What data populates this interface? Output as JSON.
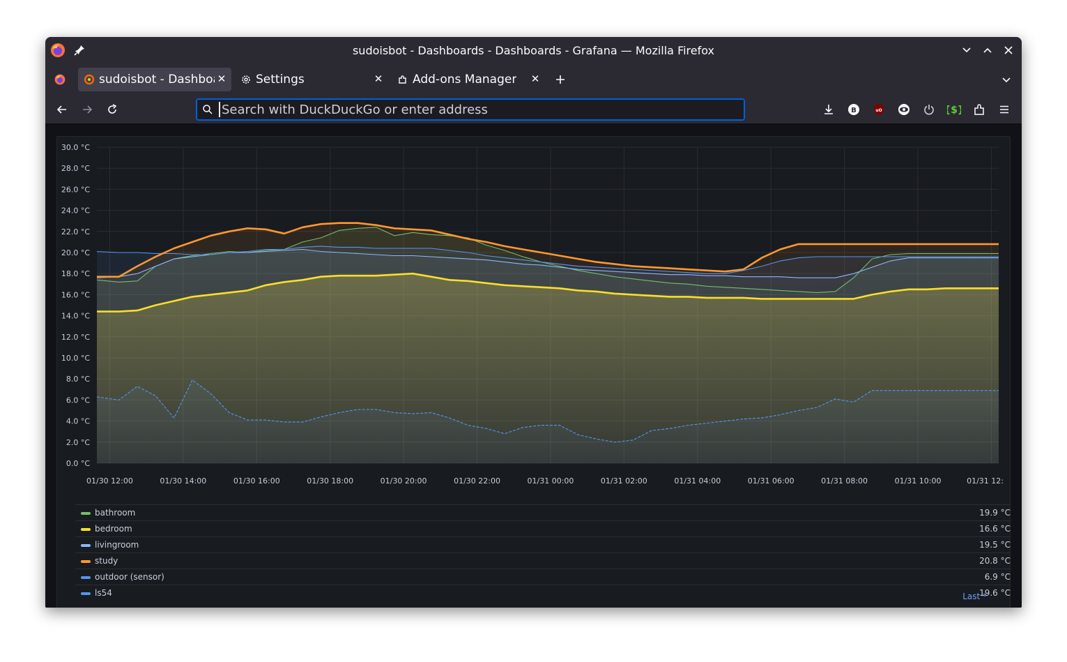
{
  "window": {
    "title": "sudoisbot - Dashboards - Dashboards - Grafana — Mozilla Firefox"
  },
  "tabs": [
    {
      "label": "sudoisbot - Dashboards - Dashboards - Grafana",
      "active": true,
      "icon": "grafana-icon"
    },
    {
      "label": "Settings",
      "active": false,
      "icon": "gear-icon"
    },
    {
      "label": "Add-ons Manager",
      "active": false,
      "icon": "puzzle-icon"
    }
  ],
  "urlbar": {
    "placeholder": "Search with DuckDuckGo or enter address"
  },
  "extensions": [
    "download-icon",
    "bitwarden-icon",
    "ublock-icon",
    "privacy-badger-icon",
    "power-icon",
    "script-icon",
    "extensions-icon",
    "menu-icon"
  ],
  "colors": {
    "bathroom": "#73bf69",
    "bedroom": "#fade2a",
    "livingroom": "#8ab8ff",
    "study": "#ff9830",
    "outdoor": "#5794f2",
    "ls54": "#5794f2"
  },
  "chart_data": {
    "type": "line",
    "yunit": "°C",
    "ylim": [
      0,
      30
    ],
    "ytick_labels": [
      "30.0 °C",
      "28.0 °C",
      "26.0 °C",
      "24.0 °C",
      "22.0 °C",
      "20.0 °C",
      "18.0 °C",
      "16.0 °C",
      "14.0 °C",
      "12.0 °C",
      "10.0 °C",
      "8.0 °C",
      "6.0 °C",
      "4.0 °C",
      "2.0 °C",
      "0.0 °C"
    ],
    "yticks": [
      30,
      28,
      26,
      24,
      22,
      20,
      18,
      16,
      14,
      12,
      10,
      8,
      6,
      4,
      2,
      0
    ],
    "xtick_labels": [
      "01/30 12:00",
      "01/30 14:00",
      "01/30 16:00",
      "01/30 18:00",
      "01/30 20:00",
      "01/30 22:00",
      "01/31 00:00",
      "01/31 02:00",
      "01/31 04:00",
      "01/31 06:00",
      "01/31 08:00",
      "01/31 10:00",
      "01/31 12:"
    ],
    "xticks_hours": [
      0,
      2,
      4,
      6,
      8,
      10,
      12,
      14,
      16,
      18,
      20,
      22,
      24
    ],
    "xlim_hours": [
      -0.35,
      24.2
    ],
    "x": [
      -0.35,
      0.25,
      0.75,
      1.25,
      1.75,
      2.25,
      2.75,
      3.25,
      3.75,
      4.25,
      4.75,
      5.25,
      5.75,
      6.25,
      6.75,
      7.25,
      7.75,
      8.25,
      8.75,
      9.25,
      9.75,
      10.25,
      10.75,
      11.25,
      11.75,
      12.25,
      12.75,
      13.25,
      13.75,
      14.25,
      14.75,
      15.25,
      15.75,
      16.25,
      16.75,
      17.25,
      17.75,
      18.25,
      18.75,
      19.25,
      19.75,
      20.25,
      20.75,
      21.25,
      21.75,
      22.25,
      22.75,
      23.25,
      23.75,
      24.2
    ],
    "series": [
      {
        "name": "bathroom",
        "values": [
          17.4,
          17.2,
          17.3,
          18.7,
          19.4,
          19.7,
          19.9,
          20.1,
          20.0,
          20.2,
          20.3,
          21.0,
          21.4,
          22.1,
          22.3,
          22.4,
          21.6,
          21.9,
          21.7,
          21.6,
          21.4,
          20.7,
          20.2,
          19.6,
          19.1,
          18.7,
          18.3,
          18.0,
          17.7,
          17.5,
          17.3,
          17.1,
          17.0,
          16.8,
          16.7,
          16.6,
          16.5,
          16.4,
          16.3,
          16.2,
          16.3,
          17.6,
          19.4,
          19.8,
          19.9,
          19.9,
          19.9,
          19.9,
          19.9,
          19.9
        ]
      },
      {
        "name": "bedroom",
        "values": [
          14.4,
          14.4,
          14.5,
          15.0,
          15.4,
          15.8,
          16.0,
          16.2,
          16.4,
          16.9,
          17.2,
          17.4,
          17.7,
          17.8,
          17.8,
          17.8,
          17.9,
          18.0,
          17.7,
          17.4,
          17.3,
          17.1,
          16.9,
          16.8,
          16.7,
          16.6,
          16.4,
          16.3,
          16.1,
          16.0,
          15.9,
          15.8,
          15.8,
          15.7,
          15.7,
          15.7,
          15.6,
          15.6,
          15.6,
          15.6,
          15.6,
          15.6,
          16.0,
          16.3,
          16.5,
          16.5,
          16.6,
          16.6,
          16.6,
          16.6
        ]
      },
      {
        "name": "livingroom",
        "values": [
          17.6,
          17.7,
          18.0,
          18.7,
          19.4,
          19.6,
          19.8,
          20.0,
          20.0,
          20.1,
          20.2,
          20.3,
          20.1,
          20.0,
          19.9,
          19.8,
          19.7,
          19.7,
          19.6,
          19.5,
          19.4,
          19.3,
          19.1,
          18.9,
          18.8,
          18.6,
          18.4,
          18.3,
          18.2,
          18.1,
          18.0,
          17.9,
          17.9,
          17.8,
          17.8,
          17.7,
          17.7,
          17.7,
          17.6,
          17.6,
          17.6,
          18.0,
          18.6,
          19.2,
          19.5,
          19.5,
          19.5,
          19.5,
          19.5,
          19.5
        ]
      },
      {
        "name": "study",
        "values": [
          17.7,
          17.7,
          18.7,
          19.6,
          20.4,
          21.0,
          21.6,
          22.0,
          22.3,
          22.2,
          21.8,
          22.4,
          22.7,
          22.8,
          22.8,
          22.6,
          22.3,
          22.2,
          22.1,
          21.7,
          21.3,
          21.0,
          20.6,
          20.3,
          20.0,
          19.7,
          19.4,
          19.1,
          18.9,
          18.7,
          18.6,
          18.5,
          18.4,
          18.3,
          18.2,
          18.4,
          19.5,
          20.3,
          20.8,
          20.8,
          20.8,
          20.8,
          20.8,
          20.8,
          20.8,
          20.8,
          20.8,
          20.8,
          20.8,
          20.8
        ]
      },
      {
        "name": "outdoor (sensor)",
        "values": [
          6.3,
          6.0,
          7.3,
          6.4,
          4.3,
          7.9,
          6.6,
          4.8,
          4.1,
          4.1,
          3.9,
          3.9,
          4.4,
          4.8,
          5.1,
          5.1,
          4.8,
          4.7,
          4.8,
          4.3,
          3.6,
          3.3,
          2.8,
          3.4,
          3.6,
          3.6,
          2.7,
          2.3,
          2.0,
          2.2,
          3.1,
          3.3,
          3.6,
          3.8,
          4.0,
          4.2,
          4.3,
          4.6,
          5.0,
          5.3,
          6.1,
          5.8,
          6.9,
          6.9,
          6.9,
          6.9,
          6.9,
          6.9,
          6.9,
          6.9
        ]
      },
      {
        "name": "ls54",
        "values": [
          20.1,
          20.0,
          20.0,
          19.9,
          19.9,
          19.8,
          19.8,
          20.0,
          20.1,
          20.3,
          20.3,
          20.5,
          20.6,
          20.5,
          20.5,
          20.4,
          20.4,
          20.4,
          20.4,
          20.2,
          20.0,
          19.7,
          19.5,
          19.3,
          19.1,
          18.9,
          18.7,
          18.6,
          18.5,
          18.4,
          18.3,
          18.2,
          18.1,
          18.0,
          18.0,
          18.3,
          18.7,
          19.2,
          19.5,
          19.6,
          19.6,
          19.6,
          19.6,
          19.6,
          19.6,
          19.6,
          19.6,
          19.6,
          19.6,
          19.6
        ]
      }
    ],
    "legend": {
      "header": "Last *",
      "placement": "bottom",
      "items": [
        {
          "name": "bathroom",
          "last": "19.9 °C",
          "color": "#73bf69"
        },
        {
          "name": "bedroom",
          "last": "16.6 °C",
          "color": "#fade2a"
        },
        {
          "name": "livingroom",
          "last": "19.5 °C",
          "color": "#8ab8ff"
        },
        {
          "name": "study",
          "last": "20.8 °C",
          "color": "#ff9830"
        },
        {
          "name": "outdoor (sensor)",
          "last": "6.9 °C",
          "color": "#5794f2"
        },
        {
          "name": "ls54",
          "last": "19.6 °C",
          "color": "#5794f2"
        }
      ]
    },
    "grid": true
  }
}
